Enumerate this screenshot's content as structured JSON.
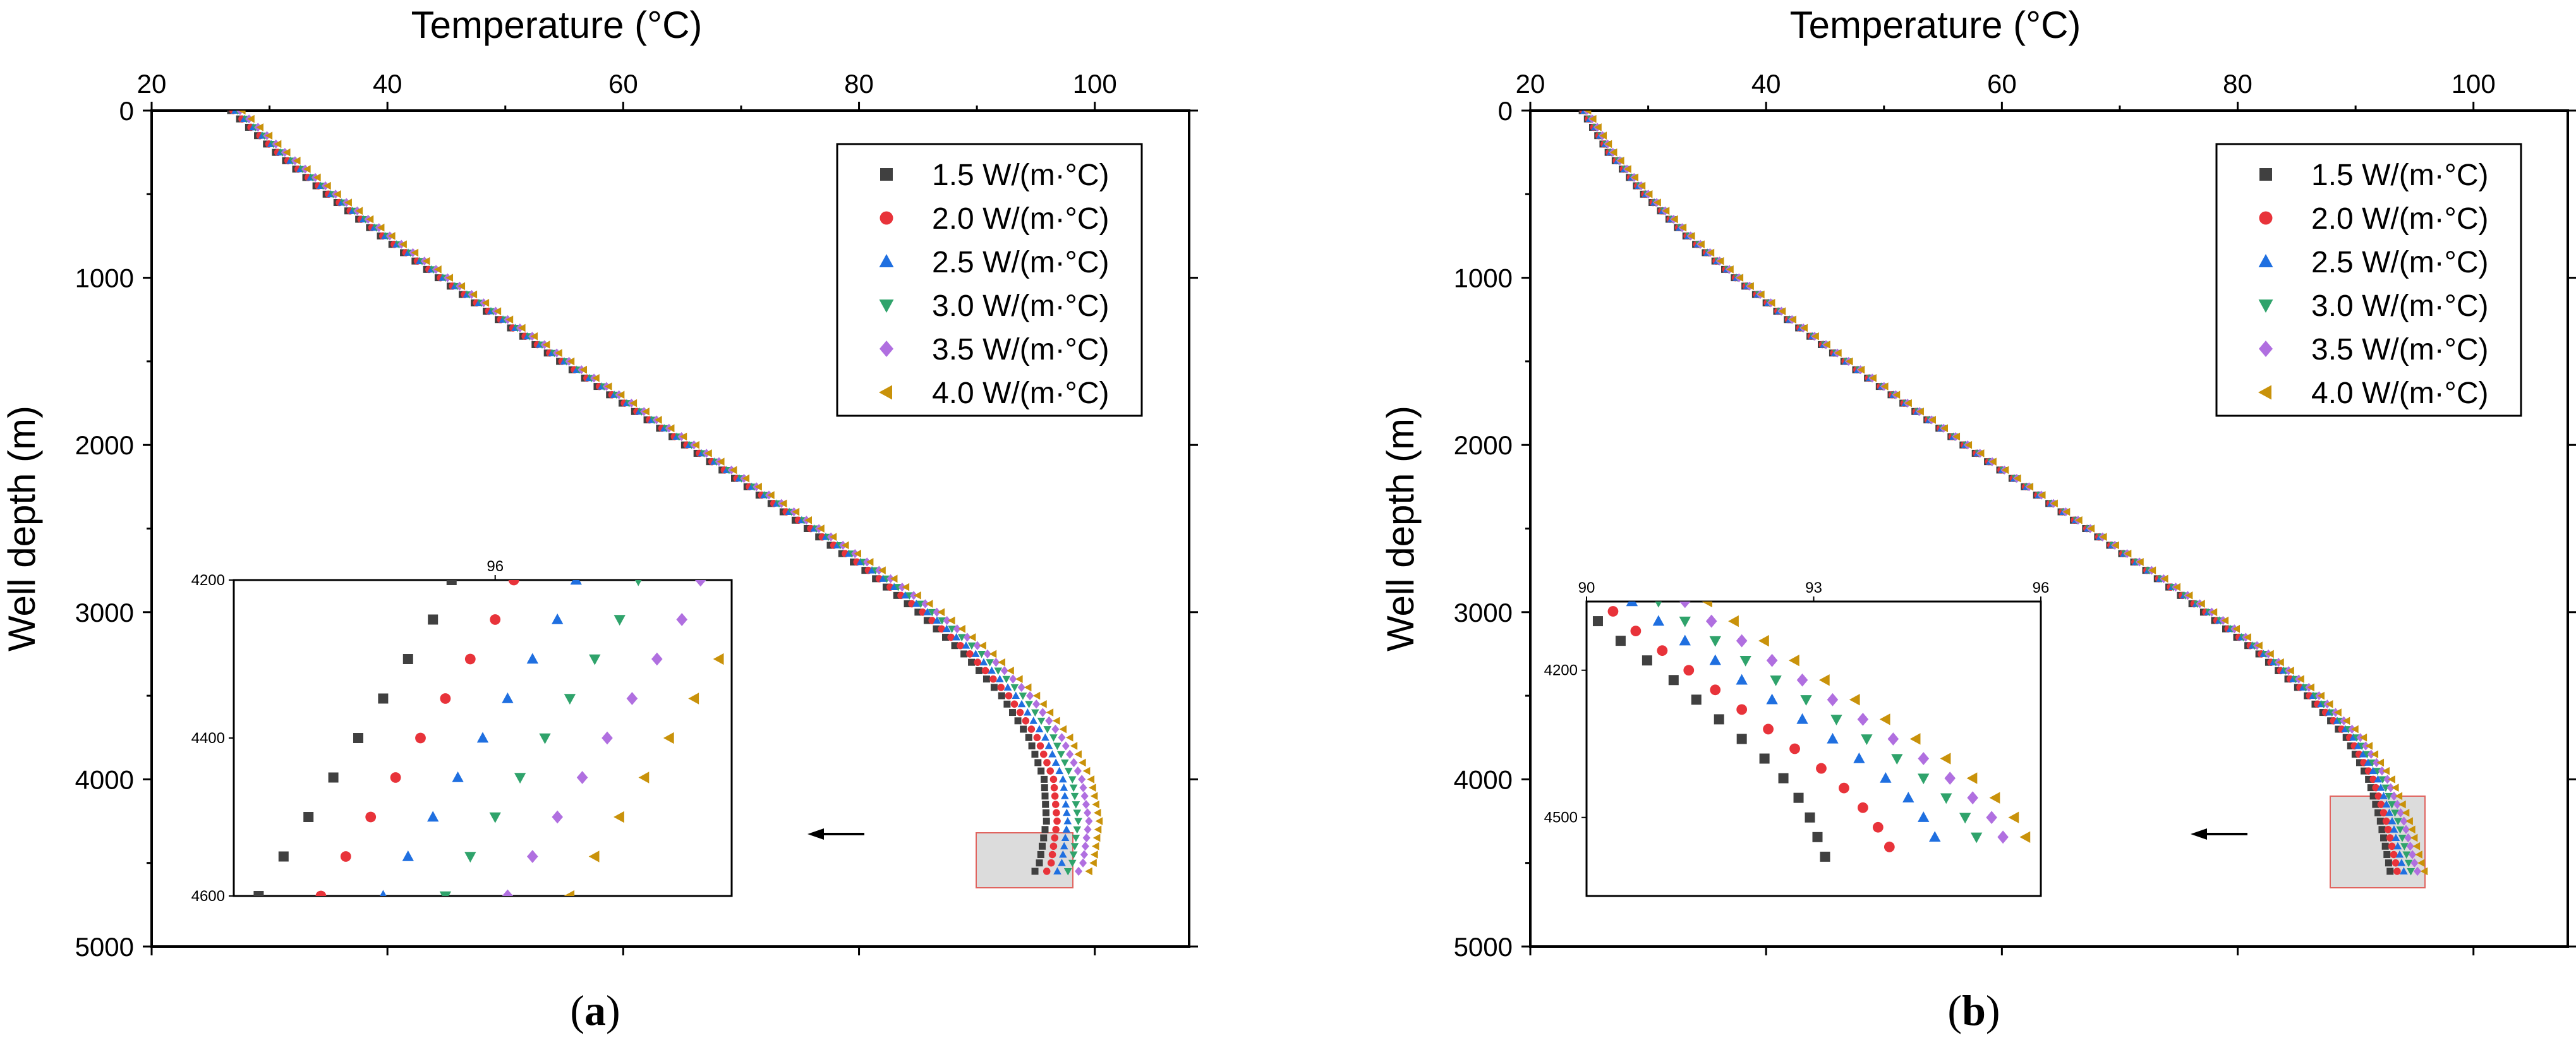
{
  "figure": {
    "panels": [
      {
        "label_open": "(",
        "label_letter": "a",
        "label_close": ")"
      },
      {
        "label_open": "(",
        "label_letter": "b",
        "label_close": ")"
      }
    ]
  },
  "chart_data": [
    {
      "type": "scatter",
      "panel": "a",
      "xlabel": "Temperature (°C)",
      "ylabel": "Well depth (m)",
      "xlim": [
        20,
        108
      ],
      "ylim": [
        5000,
        0
      ],
      "xticks": [
        20,
        40,
        60,
        80,
        100
      ],
      "yticks": [
        0,
        1000,
        2000,
        3000,
        4000,
        5000
      ],
      "x_axis_position": "top",
      "legend_position": "top-right",
      "grid": false,
      "colors": [
        "#404040",
        "#e8333a",
        "#1f6fe0",
        "#2fa36b",
        "#b06fe0",
        "#c9920a"
      ],
      "series": [
        {
          "name": "1.5 W/(m·°C)",
          "marker": "square",
          "color": "#404040",
          "x": [
            26.7,
            30.5,
            34.8,
            39.4,
            44.3,
            49.4,
            54.6,
            59.9,
            65.2,
            70.5,
            75.6,
            80.5,
            85.0,
            88.9,
            92.1,
            94.4,
            95.7,
            95.9,
            95.3,
            94.7
          ],
          "y": [
            0,
            250,
            500,
            750,
            1000,
            1250,
            1500,
            1750,
            2000,
            2250,
            2500,
            2750,
            3000,
            3250,
            3500,
            3750,
            4000,
            4250,
            4500,
            4580
          ]
        },
        {
          "name": "2.0 W/(m·°C)",
          "marker": "circle",
          "color": "#e8333a",
          "x": [
            26.9,
            30.7,
            35.0,
            39.6,
            44.5,
            49.6,
            54.8,
            60.1,
            65.4,
            70.7,
            75.9,
            80.8,
            85.4,
            89.4,
            92.7,
            95.1,
            96.5,
            96.8,
            96.3,
            95.7
          ],
          "y": [
            0,
            250,
            500,
            750,
            1000,
            1250,
            1500,
            1750,
            2000,
            2250,
            2500,
            2750,
            3000,
            3250,
            3500,
            3750,
            4000,
            4250,
            4500,
            4580
          ]
        },
        {
          "name": "2.5 W/(m·°C)",
          "marker": "triangle-up",
          "color": "#1f6fe0",
          "x": [
            27.1,
            30.9,
            35.2,
            39.8,
            44.7,
            49.8,
            55.0,
            60.3,
            65.6,
            70.9,
            76.2,
            81.1,
            85.8,
            89.9,
            93.3,
            95.8,
            97.3,
            97.7,
            97.2,
            96.6
          ],
          "y": [
            0,
            250,
            500,
            750,
            1000,
            1250,
            1500,
            1750,
            2000,
            2250,
            2500,
            2750,
            3000,
            3250,
            3500,
            3750,
            4000,
            4250,
            4500,
            4580
          ]
        },
        {
          "name": "3.0 W/(m·°C)",
          "marker": "triangle-down",
          "color": "#2fa36b",
          "x": [
            27.3,
            31.1,
            35.4,
            40.0,
            44.9,
            50.0,
            55.2,
            60.5,
            65.8,
            71.1,
            76.4,
            81.4,
            86.2,
            90.4,
            93.9,
            96.5,
            98.1,
            98.6,
            98.1,
            97.5
          ],
          "y": [
            0,
            250,
            500,
            750,
            1000,
            1250,
            1500,
            1750,
            2000,
            2250,
            2500,
            2750,
            3000,
            3250,
            3500,
            3750,
            4000,
            4250,
            4500,
            4580
          ]
        },
        {
          "name": "3.5 W/(m·°C)",
          "marker": "diamond",
          "color": "#b06fe0",
          "x": [
            27.5,
            31.3,
            35.6,
            40.2,
            45.1,
            50.2,
            55.4,
            60.7,
            66.0,
            71.3,
            76.6,
            81.7,
            86.6,
            90.9,
            94.5,
            97.2,
            98.9,
            99.5,
            99.0,
            98.4
          ],
          "y": [
            0,
            250,
            500,
            750,
            1000,
            1250,
            1500,
            1750,
            2000,
            2250,
            2500,
            2750,
            3000,
            3250,
            3500,
            3750,
            4000,
            4250,
            4500,
            4580
          ]
        },
        {
          "name": "4.0 W/(m·°C)",
          "marker": "triangle-left",
          "color": "#c9920a",
          "x": [
            27.7,
            31.5,
            35.8,
            40.4,
            45.3,
            50.4,
            55.6,
            60.9,
            66.2,
            71.5,
            76.8,
            82.0,
            87.0,
            91.4,
            95.1,
            97.9,
            99.7,
            100.4,
            99.9,
            99.3
          ],
          "y": [
            0,
            250,
            500,
            750,
            1000,
            1250,
            1500,
            1750,
            2000,
            2250,
            2500,
            2750,
            3000,
            3250,
            3500,
            3750,
            4000,
            4250,
            4500,
            4580
          ]
        }
      ],
      "inset": {
        "xlim": [
          91.8,
          99.8
        ],
        "ylim": [
          4600,
          4200
        ],
        "xticks": [
          96
        ],
        "yticks": [
          4200,
          4400,
          4600
        ],
        "x_axis_position": "top",
        "highlight_region": {
          "x": [
            92,
            99
          ],
          "y": [
            4350,
            4680
          ]
        },
        "series_points": [
          {
            "x": [
              95.3,
              95.0,
              94.6,
              94.2,
              93.8,
              93.4,
              93.0,
              92.6,
              92.2
            ],
            "y": [
              4200,
              4250,
              4300,
              4350,
              4400,
              4450,
              4500,
              4550,
              4600
            ]
          },
          {
            "x": [
              96.3,
              96.0,
              95.6,
              95.2,
              94.8,
              94.4,
              94.0,
              93.6,
              93.2
            ],
            "y": [
              4200,
              4250,
              4300,
              4350,
              4400,
              4450,
              4500,
              4550,
              4600
            ]
          },
          {
            "x": [
              97.3,
              97.0,
              96.6,
              96.2,
              95.8,
              95.4,
              95.0,
              94.6,
              94.2
            ],
            "y": [
              4200,
              4250,
              4300,
              4350,
              4400,
              4450,
              4500,
              4550,
              4600
            ]
          },
          {
            "x": [
              98.3,
              98.0,
              97.6,
              97.2,
              96.8,
              96.4,
              96.0,
              95.6,
              95.2
            ],
            "y": [
              4200,
              4250,
              4300,
              4350,
              4400,
              4450,
              4500,
              4550,
              4600
            ]
          },
          {
            "x": [
              99.3,
              99.0,
              98.6,
              98.2,
              97.8,
              97.4,
              97.0,
              96.6,
              96.2
            ],
            "y": [
              4200,
              4250,
              4300,
              4350,
              4400,
              4450,
              4500,
              4550,
              4600
            ]
          },
          {
            "x": [
              100.3,
              100.0,
              99.6,
              99.2,
              98.8,
              98.4,
              98.0,
              97.6,
              97.2
            ],
            "y": [
              4200,
              4250,
              4300,
              4350,
              4400,
              4450,
              4500,
              4550,
              4600
            ]
          }
        ]
      }
    },
    {
      "type": "scatter",
      "panel": "b",
      "xlabel": "Temperature (°C)",
      "ylabel": "Well depth (m)",
      "xlim": [
        20,
        108
      ],
      "ylim": [
        5000,
        0
      ],
      "xticks": [
        20,
        40,
        60,
        80,
        100
      ],
      "yticks": [
        0,
        1000,
        2000,
        3000,
        4000,
        5000
      ],
      "x_axis_position": "top",
      "legend_position": "top-right",
      "grid": false,
      "colors": [
        "#404040",
        "#e8333a",
        "#1f6fe0",
        "#2fa36b",
        "#b06fe0",
        "#c9920a"
      ],
      "series": [
        {
          "name": "1.5 W/(m·°C)",
          "marker": "square",
          "color": "#404040",
          "x": [
            24.4,
            26.6,
            29.6,
            33.2,
            37.3,
            41.8,
            46.6,
            51.6,
            56.7,
            61.9,
            67.1,
            72.2,
            77.1,
            81.8,
            85.9,
            89.2,
            91.1,
            92.1,
            92.8,
            93.0
          ],
          "y": [
            0,
            250,
            500,
            750,
            1000,
            1250,
            1500,
            1750,
            2000,
            2250,
            2500,
            2750,
            3000,
            3250,
            3500,
            3750,
            4000,
            4250,
            4500,
            4580
          ]
        },
        {
          "name": "2.0 W/(m·°C)",
          "marker": "circle",
          "color": "#e8333a",
          "x": [
            24.5,
            26.7,
            29.7,
            33.3,
            37.4,
            41.9,
            46.7,
            51.7,
            56.8,
            62.0,
            67.2,
            72.3,
            77.3,
            82.0,
            86.1,
            89.5,
            91.5,
            92.6,
            93.4,
            93.6
          ],
          "y": [
            0,
            250,
            500,
            750,
            1000,
            1250,
            1500,
            1750,
            2000,
            2250,
            2500,
            2750,
            3000,
            3250,
            3500,
            3750,
            4000,
            4250,
            4500,
            4580
          ]
        },
        {
          "name": "2.5 W/(m·°C)",
          "marker": "triangle-up",
          "color": "#1f6fe0",
          "x": [
            24.6,
            26.8,
            29.8,
            33.4,
            37.5,
            42.0,
            46.8,
            51.8,
            56.9,
            62.1,
            67.3,
            72.4,
            77.5,
            82.2,
            86.4,
            89.8,
            91.9,
            93.1,
            93.9,
            94.2
          ],
          "y": [
            0,
            250,
            500,
            750,
            1000,
            1250,
            1500,
            1750,
            2000,
            2250,
            2500,
            2750,
            3000,
            3250,
            3500,
            3750,
            4000,
            4250,
            4500,
            4580
          ]
        },
        {
          "name": "3.0 W/(m·°C)",
          "marker": "triangle-down",
          "color": "#2fa36b",
          "x": [
            24.7,
            26.9,
            29.9,
            33.5,
            37.6,
            42.1,
            46.9,
            51.9,
            57.0,
            62.2,
            67.4,
            72.5,
            77.6,
            82.4,
            86.6,
            90.1,
            92.3,
            93.6,
            94.5,
            94.8
          ],
          "y": [
            0,
            250,
            500,
            750,
            1000,
            1250,
            1500,
            1750,
            2000,
            2250,
            2500,
            2750,
            3000,
            3250,
            3500,
            3750,
            4000,
            4250,
            4500,
            4580
          ]
        },
        {
          "name": "3.5 W/(m·°C)",
          "marker": "diamond",
          "color": "#b06fe0",
          "x": [
            24.8,
            27.0,
            30.0,
            33.6,
            37.7,
            42.2,
            47.0,
            52.0,
            57.1,
            62.3,
            67.5,
            72.7,
            77.8,
            82.6,
            86.9,
            90.4,
            92.7,
            94.1,
            95.0,
            95.4
          ],
          "y": [
            0,
            250,
            500,
            750,
            1000,
            1250,
            1500,
            1750,
            2000,
            2250,
            2500,
            2750,
            3000,
            3250,
            3500,
            3750,
            4000,
            4250,
            4500,
            4580
          ]
        },
        {
          "name": "4.0 W/(m·°C)",
          "marker": "triangle-left",
          "color": "#c9920a",
          "x": [
            24.9,
            27.1,
            30.1,
            33.7,
            37.8,
            42.3,
            47.1,
            52.1,
            57.2,
            62.4,
            67.6,
            72.8,
            78.0,
            82.8,
            87.1,
            90.7,
            93.1,
            94.6,
            95.6,
            96.0
          ],
          "y": [
            0,
            250,
            500,
            750,
            1000,
            1250,
            1500,
            1750,
            2000,
            2250,
            2500,
            2750,
            3000,
            3250,
            3500,
            3750,
            4000,
            4250,
            4500,
            4580
          ]
        }
      ],
      "inset": {
        "xlim": [
          90,
          96
        ],
        "ylim": [
          4060,
          4660
        ],
        "xticks": [
          90,
          93,
          96
        ],
        "yticks": [
          4200,
          4500
        ],
        "x_axis_position": "top",
        "highlight_region": {
          "x": [
            89.5,
            97.8
          ],
          "y": [
            4100,
            4680
          ]
        },
        "series_points": [
          {
            "x": [
              90.15,
              90.45,
              90.8,
              91.15,
              91.45,
              91.75,
              92.05,
              92.35,
              92.6,
              92.8,
              92.95,
              93.05,
              93.15
            ],
            "y": [
              4100,
              4140,
              4180,
              4220,
              4260,
              4300,
              4340,
              4380,
              4420,
              4460,
              4500,
              4540,
              4580
            ]
          },
          {
            "x": [
              90.35,
              90.65,
              91.0,
              91.35,
              91.7,
              92.05,
              92.4,
              92.75,
              93.1,
              93.4,
              93.65,
              93.85,
              94.0
            ],
            "y": [
              4080,
              4120,
              4160,
              4200,
              4240,
              4280,
              4320,
              4360,
              4400,
              4440,
              4480,
              4520,
              4560
            ]
          },
          {
            "x": [
              90.6,
              90.95,
              91.3,
              91.7,
              92.05,
              92.45,
              92.85,
              93.25,
              93.6,
              93.95,
              94.25,
              94.45,
              94.6
            ],
            "y": [
              4060,
              4100,
              4140,
              4180,
              4220,
              4260,
              4300,
              4340,
              4380,
              4420,
              4460,
              4500,
              4540
            ]
          },
          {
            "x": [
              90.95,
              91.3,
              91.7,
              92.1,
              92.5,
              92.9,
              93.3,
              93.7,
              94.1,
              94.45,
              94.75,
              95.0,
              95.15
            ],
            "y": [
              4060,
              4100,
              4140,
              4180,
              4220,
              4260,
              4300,
              4340,
              4380,
              4420,
              4460,
              4500,
              4540
            ]
          },
          {
            "x": [
              91.3,
              91.65,
              92.05,
              92.45,
              92.85,
              93.25,
              93.65,
              94.05,
              94.45,
              94.8,
              95.1,
              95.35,
              95.5
            ],
            "y": [
              4060,
              4100,
              4140,
              4180,
              4220,
              4260,
              4300,
              4340,
              4380,
              4420,
              4460,
              4500,
              4540
            ]
          },
          {
            "x": [
              91.6,
              91.95,
              92.35,
              92.75,
              93.15,
              93.55,
              93.95,
              94.35,
              94.75,
              95.1,
              95.4,
              95.65,
              95.8
            ],
            "y": [
              4060,
              4100,
              4140,
              4180,
              4220,
              4260,
              4300,
              4340,
              4380,
              4420,
              4460,
              4500,
              4540
            ]
          }
        ]
      }
    }
  ]
}
